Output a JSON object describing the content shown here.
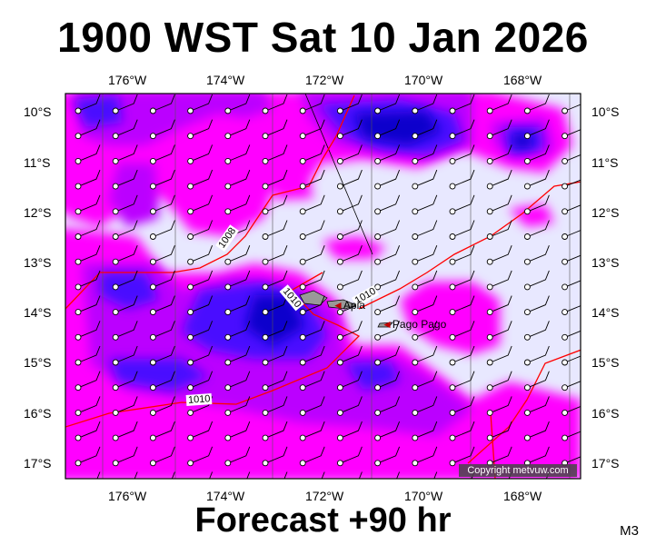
{
  "title": "1900 WST Sat 10 Jan 2026",
  "footer": "Forecast +90 hr",
  "model_tag": "M3",
  "copyright": "Copyright metvuw.com",
  "lon_ticks": [
    "176°W",
    "174°W",
    "172°W",
    "170°W",
    "168°W"
  ],
  "lat_ticks": [
    "10°S",
    "11°S",
    "12°S",
    "13°S",
    "14°S",
    "15°S",
    "16°S",
    "17°S"
  ],
  "isobars": [
    {
      "label": "1008"
    },
    {
      "label": "1010"
    },
    {
      "label": "1010"
    },
    {
      "label": "1010"
    }
  ],
  "places": [
    {
      "name": "Apia"
    },
    {
      "name": "Pago Pago"
    }
  ],
  "colors": {
    "background": "#e8e8ff",
    "rain_light": "#ff00ff",
    "rain_medium": "#cc00ff",
    "rain_heavy": "#4010ff",
    "rain_extreme": "#0000cc",
    "isobar": "#ff0000",
    "coast": "#000000"
  },
  "wind_barbs": "west-northwest winds across grid"
}
